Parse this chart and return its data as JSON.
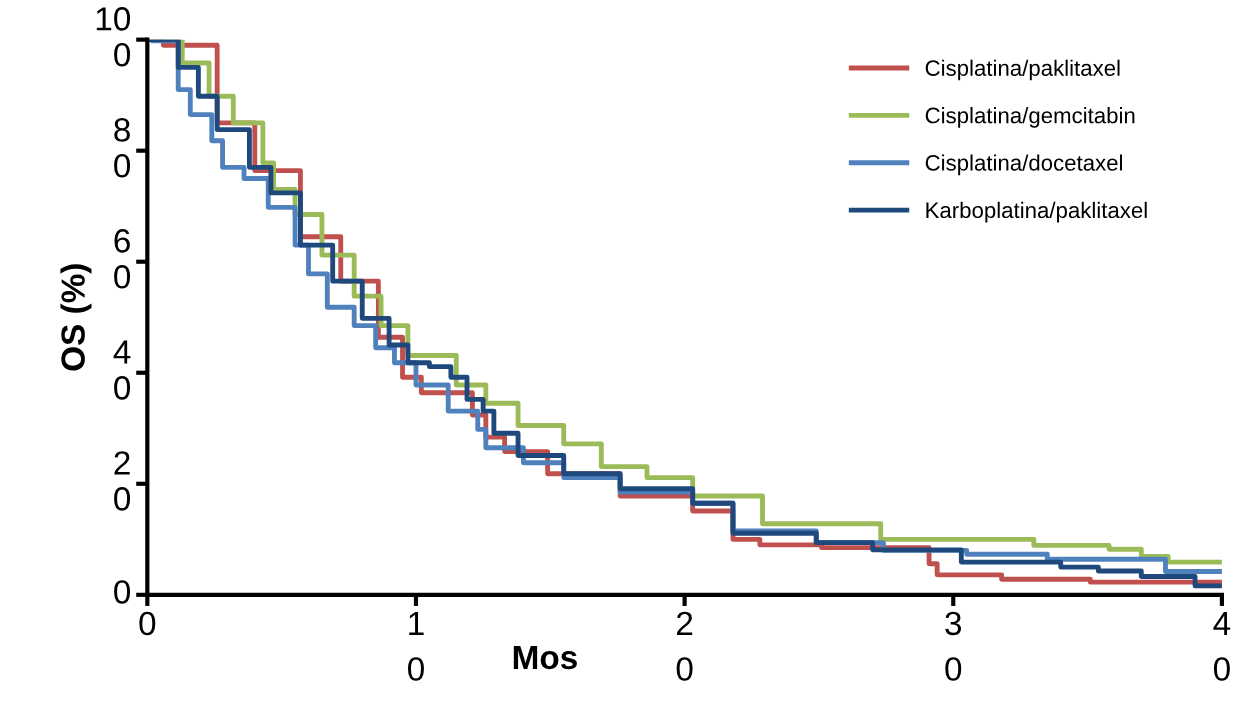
{
  "chart_data": {
    "type": "step",
    "xlabel": "Mos",
    "ylabel": "OS (%)",
    "xlim": [
      0,
      40
    ],
    "ylim": [
      0,
      100
    ],
    "xticks": [
      0,
      10,
      20,
      30,
      40
    ],
    "yticks": [
      0,
      20,
      40,
      60,
      80,
      100
    ],
    "grid": false,
    "legend": "top right",
    "series": [
      {
        "name": "Cisplatina/paklitaxel",
        "color": "#c0504d",
        "x": [
          0,
          0.6,
          2.6,
          4.0,
          5.7,
          7.2,
          8.6,
          9.5,
          10.2,
          12.1,
          12.6,
          13.3,
          14.9,
          17.6,
          20.3,
          21.8,
          22.8,
          25.1,
          29.1,
          29.4,
          31.8,
          35.1,
          40
        ],
        "values": [
          100,
          99,
          85,
          76.4,
          64.5,
          56.5,
          46.4,
          39.2,
          36.4,
          32.4,
          28.4,
          25.8,
          21.8,
          17.8,
          15.1,
          10,
          9,
          8.5,
          5.6,
          3.6,
          2.8,
          2.3,
          2.3
        ]
      },
      {
        "name": "Cisplatina/gemcitabin",
        "color": "#9bbb59",
        "x": [
          0,
          1.3,
          2.3,
          3.2,
          4.3,
          4.7,
          5.5,
          6.5,
          7.7,
          8.7,
          9.7,
          11.5,
          12.6,
          13.8,
          15.5,
          16.9,
          18.6,
          20.3,
          22.9,
          27.3,
          33,
          35.8,
          37,
          38,
          40
        ],
        "values": [
          100,
          95.8,
          89.8,
          85,
          77.8,
          73,
          68.5,
          61.2,
          53.8,
          48.5,
          43.1,
          37.8,
          34.5,
          30.5,
          27.2,
          23.1,
          21.1,
          17.8,
          12.8,
          10,
          8.9,
          8.2,
          6.9,
          5.9,
          5.9
        ]
      },
      {
        "name": "Cisplatina/docetaxel",
        "color": "#4f81bd",
        "x": [
          0,
          0.17,
          1.15,
          1.6,
          2.4,
          2.8,
          3.6,
          4.5,
          5.5,
          6.0,
          6.7,
          7.7,
          8.5,
          9.2,
          10.0,
          11.2,
          12.3,
          12.6,
          14.0,
          15.5,
          17.6,
          20.3,
          21.8,
          24.9,
          27.4,
          30.5,
          33.5,
          37.9,
          40
        ],
        "values": [
          100,
          99.8,
          91,
          86.5,
          81.8,
          77,
          75,
          69.8,
          63,
          57.8,
          51.8,
          48.5,
          44.5,
          41.8,
          37.8,
          33.1,
          29.8,
          26.5,
          23.8,
          21.1,
          18.5,
          16.5,
          11.5,
          9.4,
          8,
          7.3,
          6.4,
          4.2,
          4.2
        ]
      },
      {
        "name": "Karboplatina/paklitaxel",
        "color": "#1f497d",
        "x": [
          0,
          0.3,
          1.15,
          1.9,
          2.6,
          3.8,
          4.6,
          5.7,
          6.9,
          8.0,
          9.0,
          9.7,
          10.5,
          11.3,
          11.9,
          12.5,
          12.9,
          13.8,
          15.5,
          17.6,
          20.3,
          21.8,
          24.9,
          27,
          30.3,
          34,
          35.4,
          37,
          39,
          40
        ],
        "values": [
          100,
          100,
          95,
          89.8,
          83.8,
          77,
          72.4,
          63,
          56.5,
          49.8,
          45,
          41.8,
          41.1,
          39.2,
          35.2,
          33.1,
          29.1,
          25.1,
          21.8,
          19.1,
          16.5,
          11.1,
          9.4,
          8.1,
          5.9,
          5,
          4.3,
          3.3,
          1.6,
          1.6
        ]
      }
    ]
  }
}
